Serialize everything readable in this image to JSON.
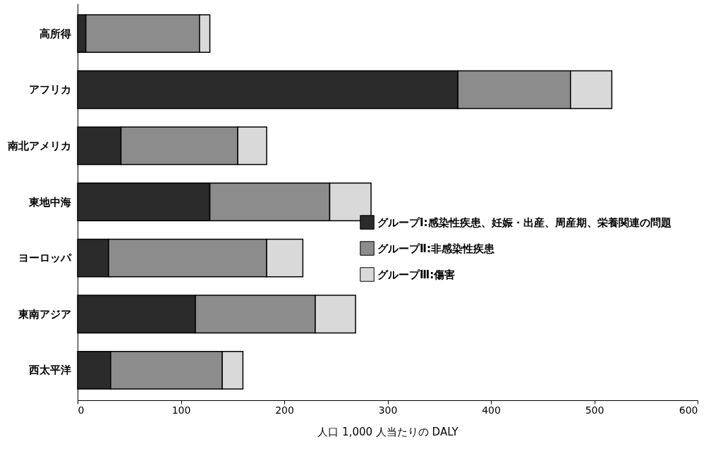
{
  "chart_data": {
    "type": "bar",
    "orientation": "horizontal",
    "stacked": true,
    "xlabel": "人口 1,000 人当たりの DALY",
    "categories": [
      "高所得",
      "アフリカ",
      "南北アメリカ",
      "東地中海",
      "ヨーロッパ",
      "東南アジア",
      "西太平洋"
    ],
    "series": [
      {
        "name": "グループⅠ:感染性疾患、妊娠・出産、周産期、栄養関連の問題",
        "color": "#2b2b2b",
        "values": [
          8,
          368,
          42,
          128,
          30,
          114,
          32
        ]
      },
      {
        "name": "グループⅡ:非感染性疾患",
        "color": "#8c8c8c",
        "values": [
          110,
          109,
          113,
          116,
          153,
          116,
          108
        ]
      },
      {
        "name": "グループⅢ:傷害",
        "color": "#d9d9d9",
        "values": [
          10,
          40,
          28,
          40,
          35,
          39,
          20
        ]
      }
    ],
    "xlim": [
      0,
      600
    ],
    "xticks": [
      0,
      100,
      200,
      300,
      400,
      500,
      600
    ],
    "grid": false,
    "legend": "right"
  }
}
